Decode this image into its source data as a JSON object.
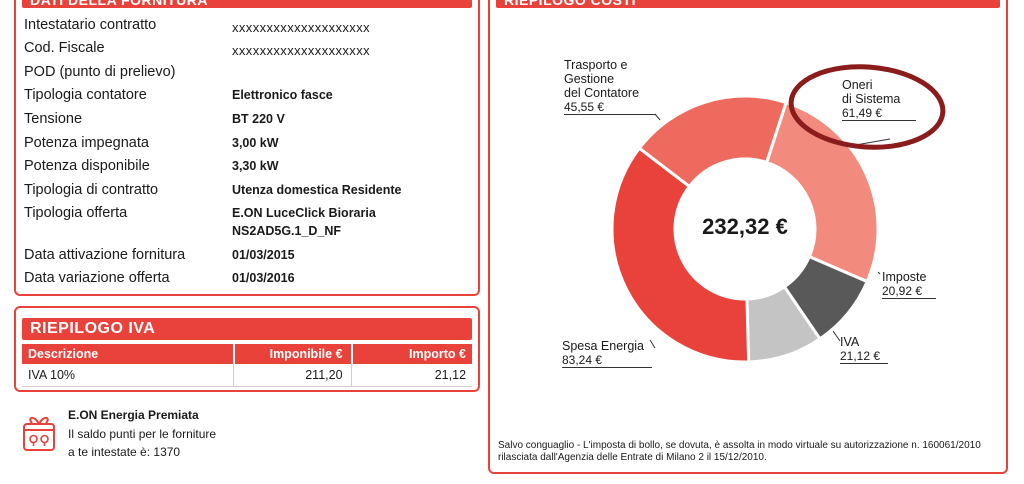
{
  "fornitura": {
    "title": "DATI DELLA FORNITURA",
    "rows": [
      {
        "label": "Intestatario contratto",
        "value": "xxxxxxxxxxxxxxxxxxxx"
      },
      {
        "label": "Cod. Fiscale",
        "value": "xxxxxxxxxxxxxxxxxxxx"
      },
      {
        "label": "POD (punto di prelievo)",
        "value": ""
      },
      {
        "label": "Tipologia contatore",
        "value": "Elettronico fasce"
      },
      {
        "label": "Tensione",
        "value": "BT 220 V"
      },
      {
        "label": "Potenza impegnata",
        "value": "3,00 kW"
      },
      {
        "label": "Potenza disponibile",
        "value": "3,30 kW"
      },
      {
        "label": "Tipologia di contratto",
        "value": "Utenza domestica Residente"
      },
      {
        "label": "Tipologia offerta",
        "value": "E.ON LuceClick Bioraria",
        "value2": "NS2AD5G.1_D_NF"
      },
      {
        "label": "Data attivazione fornitura",
        "value": "01/03/2015"
      },
      {
        "label": "Data variazione offerta",
        "value": "01/03/2016"
      }
    ]
  },
  "iva": {
    "title": "RIEPILOGO IVA",
    "headers": [
      "Descrizione",
      "Imponibile €",
      "Importo €"
    ],
    "rows": [
      [
        "IVA 10%",
        "211,20",
        "21,12"
      ]
    ]
  },
  "premiata": {
    "title": "E.ON Energia Premiata",
    "line1": "Il saldo punti per le forniture",
    "line2": "a te intestate è: 1370",
    "icon": "gift-icon"
  },
  "costi": {
    "title": "RIEPILOGO COSTI",
    "total": "232,32 €",
    "footnote": "Salvo conguaglio - L'imposta di bollo, se dovuta, è assolta in modo virtuale su autorizzazione n. 160061/2010 rilasciata dall'Agenzia delle Entrate di Milano 2 il 15/12/2010.",
    "labels": {
      "trasporto": [
        "Trasporto e",
        "Gestione",
        "del Contatore"
      ],
      "trasporto_val": "45,55 €",
      "oneri": [
        "Oneri",
        "di Sistema"
      ],
      "oneri_val": "61,49 €",
      "imposte": [
        "Imposte"
      ],
      "imposte_val": "20,92 €",
      "iva": [
        "IVA"
      ],
      "iva_val": "21,12 €",
      "spesa": [
        "Spesa Energia"
      ],
      "spesa_val": "83,24 €"
    },
    "highlight_color": "#8b1c1c"
  },
  "chart_data": {
    "type": "pie",
    "categories": [
      "Oneri di Sistema",
      "Imposte",
      "IVA",
      "Spesa Energia",
      "Trasporto e Gestione del Contatore"
    ],
    "values": [
      61.49,
      20.92,
      21.12,
      83.24,
      45.55
    ],
    "colors": [
      "#f28a7e",
      "#595959",
      "#c4c4c4",
      "#e8423a",
      "#ef6a5e"
    ],
    "title": "RIEPILOGO COSTI",
    "total": 232.32
  }
}
